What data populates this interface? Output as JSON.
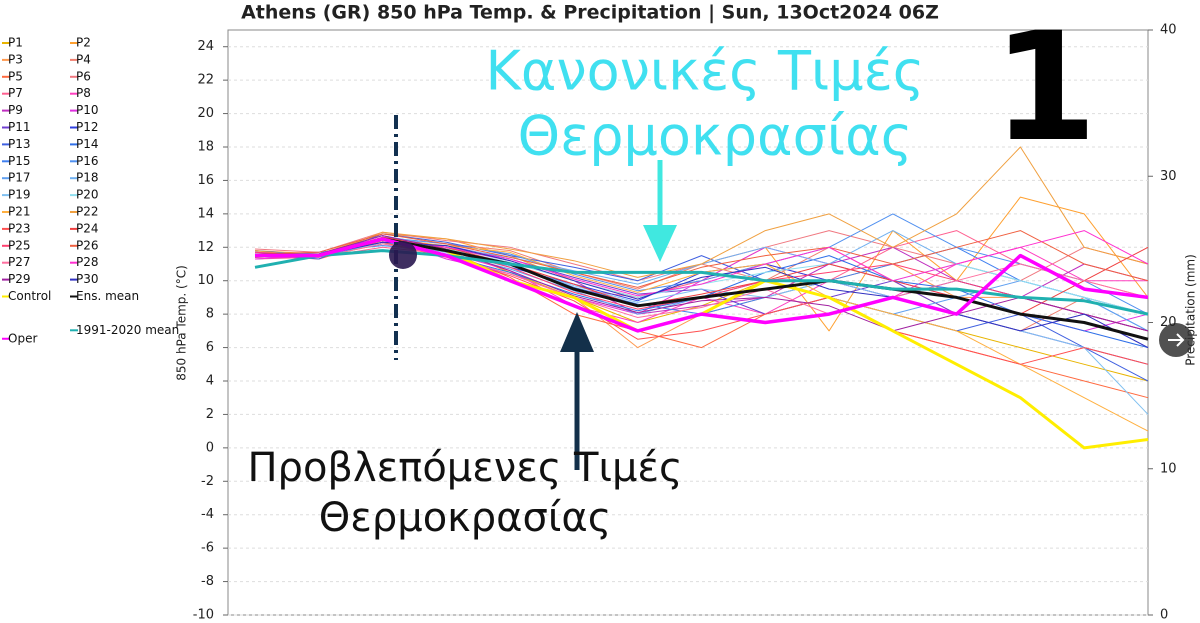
{
  "chart_data": {
    "type": "line",
    "title": "Athens  (GR)  850 hPa Temp. & Precipitation | Sun, 13Oct2024 06Z",
    "y_label": "850 hPa Temp. (°C)",
    "y2_label": "Precipitation (mm)",
    "ylim": [
      -10,
      25
    ],
    "yticks": [
      -10,
      -8,
      -6,
      -4,
      -2,
      0,
      2,
      4,
      6,
      8,
      10,
      12,
      14,
      16,
      18,
      20,
      22,
      24
    ],
    "y2lim": [
      0,
      40
    ],
    "y2ticks": [
      0,
      10,
      20,
      30,
      40
    ],
    "grid": true,
    "legend": "left",
    "annotations": [
      "Κανονικές Τιμές",
      "Θερμοκρασίας",
      "Προβλεπόμενες Τιμές",
      "Θερμοκρασίας",
      "1"
    ],
    "series": [
      {
        "name": "P1",
        "color": "#e8b400",
        "linewidth": 1,
        "values": [
          11.6,
          11.4,
          12.2,
          12,
          10.5,
          9,
          7.5,
          8.5,
          10,
          9,
          8,
          7,
          6,
          5,
          4
        ]
      },
      {
        "name": "P2",
        "color": "#ffa030",
        "linewidth": 1,
        "values": [
          11.8,
          11.6,
          12.8,
          12.5,
          11.5,
          10,
          9,
          10,
          12,
          7,
          13,
          10,
          15,
          14,
          9
        ]
      },
      {
        "name": "P3",
        "color": "#ff9a50",
        "linewidth": 1,
        "values": [
          11.4,
          11.5,
          12.3,
          11.5,
          10,
          9,
          6,
          8,
          9,
          10,
          11,
          9,
          9,
          8,
          7
        ]
      },
      {
        "name": "P4",
        "color": "#f08070",
        "linewidth": 1,
        "values": [
          11.7,
          11.6,
          12.6,
          12.2,
          11.8,
          10.5,
          9.5,
          11,
          10,
          12,
          10,
          8,
          7,
          9,
          8
        ]
      },
      {
        "name": "P5",
        "color": "#ff6a40",
        "linewidth": 1,
        "values": [
          11.5,
          11.3,
          12.4,
          11.8,
          10.2,
          8,
          7,
          6,
          8,
          9,
          7,
          6,
          5,
          4,
          3
        ]
      },
      {
        "name": "P6",
        "color": "#f07880",
        "linewidth": 1,
        "values": [
          11.9,
          11.7,
          12.9,
          12.4,
          12,
          11,
          10,
          11,
          12,
          13,
          12,
          11,
          10,
          12,
          11
        ]
      },
      {
        "name": "P7",
        "color": "#ff6090",
        "linewidth": 1,
        "values": [
          11.3,
          11.4,
          12,
          11.6,
          11,
          9.5,
          9,
          10,
          11,
          10,
          12,
          13,
          11,
          10,
          9
        ]
      },
      {
        "name": "P8",
        "color": "#ff40c0",
        "linewidth": 1,
        "values": [
          11.6,
          11.5,
          12.7,
          11.7,
          10.6,
          8.5,
          7.5,
          9,
          8,
          10,
          9,
          11,
          12,
          10,
          10
        ]
      },
      {
        "name": "P9",
        "color": "#c030c0",
        "linewidth": 1,
        "values": [
          11.5,
          11.6,
          12.5,
          12,
          11.2,
          10,
          8,
          8.5,
          9,
          11,
          12,
          10,
          9,
          11,
          10
        ]
      },
      {
        "name": "P10",
        "color": "#e030e0",
        "linewidth": 1,
        "values": [
          11.7,
          11.4,
          12.6,
          11.3,
          10.4,
          9,
          8,
          10,
          12,
          11,
          10,
          9,
          8,
          7,
          8
        ]
      },
      {
        "name": "P11",
        "color": "#7040d0",
        "linewidth": 1,
        "values": [
          11.5,
          11.5,
          12.2,
          12.1,
          11.3,
          10.2,
          9.2,
          9.5,
          8,
          9,
          10,
          8,
          7,
          6,
          5
        ]
      },
      {
        "name": "P12",
        "color": "#3040e0",
        "linewidth": 1,
        "values": [
          11.4,
          11.6,
          12.4,
          11.9,
          10.8,
          9.8,
          8.8,
          10.5,
          11,
          10,
          9,
          10,
          9,
          8,
          7
        ]
      },
      {
        "name": "P13",
        "color": "#4060e0",
        "linewidth": 1,
        "values": [
          11.6,
          11.3,
          12.8,
          12.3,
          11.5,
          10.8,
          10,
          11.5,
          10,
          9,
          8,
          7,
          8,
          6,
          4
        ]
      },
      {
        "name": "P14",
        "color": "#3070e8",
        "linewidth": 1,
        "values": [
          11.8,
          11.5,
          12.5,
          11.5,
          10.5,
          9.2,
          8.2,
          9,
          10.5,
          11.5,
          10,
          9.5,
          8,
          7,
          6
        ]
      },
      {
        "name": "P15",
        "color": "#4080f0",
        "linewidth": 1,
        "values": [
          11.5,
          11.7,
          12.1,
          11.8,
          11,
          9.6,
          8.6,
          8,
          9,
          10,
          11,
          12,
          10,
          9,
          7
        ]
      },
      {
        "name": "P16",
        "color": "#5090f0",
        "linewidth": 1,
        "values": [
          11.3,
          11.5,
          12.6,
          12.2,
          11.6,
          10.4,
          9.4,
          10,
          11,
          12,
          14,
          12,
          11,
          10,
          8
        ]
      },
      {
        "name": "P17",
        "color": "#60a0f0",
        "linewidth": 1,
        "values": [
          11.6,
          11.4,
          12.3,
          11.7,
          10.7,
          9.4,
          8,
          9,
          10,
          9,
          8,
          9,
          10,
          9,
          7
        ]
      },
      {
        "name": "P18",
        "color": "#70b0f0",
        "linewidth": 1,
        "values": [
          11.7,
          11.6,
          12.7,
          12,
          11.4,
          10.6,
          9.8,
          11,
          12,
          11,
          13,
          11,
          10,
          9,
          8
        ]
      },
      {
        "name": "P19",
        "color": "#80c0f0",
        "linewidth": 1,
        "values": [
          11.4,
          11.5,
          12.4,
          11.6,
          10.9,
          9.7,
          8.7,
          9.5,
          9,
          10,
          9,
          8,
          7,
          6,
          2
        ]
      },
      {
        "name": "P20",
        "color": "#90e0f0",
        "linewidth": 1,
        "values": [
          11.5,
          11.6,
          12.2,
          11.9,
          11.1,
          10,
          9,
          9.8,
          10.5,
          11,
          10,
          11,
          10,
          9,
          8
        ]
      },
      {
        "name": "P21",
        "color": "#ffb040",
        "linewidth": 1,
        "values": [
          11.6,
          11.5,
          12.5,
          12.1,
          11.7,
          10.3,
          9.3,
          10.5,
          11,
          9,
          8,
          7,
          5,
          3,
          1
        ]
      },
      {
        "name": "P22",
        "color": "#f0a040",
        "linewidth": 1,
        "values": [
          11.8,
          11.4,
          12.9,
          12.5,
          11.9,
          11.2,
          10.2,
          11,
          13,
          14,
          12,
          14,
          18,
          12,
          11
        ]
      },
      {
        "name": "P23",
        "color": "#ff5050",
        "linewidth": 1,
        "values": [
          11.5,
          11.6,
          12.3,
          11.4,
          10.3,
          8.8,
          6.5,
          7,
          8,
          9,
          7,
          6,
          5,
          6,
          5
        ]
      },
      {
        "name": "P24",
        "color": "#f04040",
        "linewidth": 1,
        "values": [
          11.4,
          11.5,
          12.6,
          12,
          11,
          9.8,
          8.5,
          9.2,
          10,
          11,
          10,
          9,
          8,
          10,
          12
        ]
      },
      {
        "name": "P25",
        "color": "#ff4070",
        "linewidth": 1,
        "values": [
          11.7,
          11.5,
          12.4,
          11.8,
          10.8,
          9.3,
          8.3,
          9,
          10,
          10.5,
          11,
          10,
          9,
          8,
          7
        ]
      },
      {
        "name": "P26",
        "color": "#f06040",
        "linewidth": 1,
        "values": [
          11.6,
          11.7,
          12.8,
          12.2,
          11.4,
          10.5,
          9.6,
          10.8,
          11.5,
          12,
          11,
          12,
          13,
          11,
          10
        ]
      },
      {
        "name": "P27",
        "color": "#ff70a0",
        "linewidth": 1,
        "values": [
          11.5,
          11.4,
          12.2,
          11.5,
          10.4,
          9,
          7.8,
          8.4,
          9.5,
          8,
          9,
          10,
          11,
          10,
          9
        ]
      },
      {
        "name": "P28",
        "color": "#ff30d0",
        "linewidth": 1,
        "values": [
          11.3,
          11.5,
          12.5,
          12,
          11.3,
          10.1,
          9.1,
          9.8,
          11,
          12,
          10,
          11,
          12,
          13,
          11
        ]
      },
      {
        "name": "P29",
        "color": "#a020a0",
        "linewidth": 1,
        "values": [
          11.6,
          11.6,
          12.7,
          11.9,
          10.6,
          9.1,
          8.1,
          8.8,
          9,
          8.5,
          7,
          8,
          9,
          8,
          7
        ]
      },
      {
        "name": "P30",
        "color": "#3030c0",
        "linewidth": 1,
        "values": [
          11.5,
          11.5,
          12.3,
          12.1,
          11.2,
          10,
          8.9,
          10.2,
          10.8,
          9.5,
          9,
          8,
          7,
          8,
          6
        ]
      },
      {
        "name": "Control",
        "color": "#ffee00",
        "linewidth": 3,
        "values": [
          11.5,
          11.5,
          12.5,
          11.8,
          10,
          9,
          7,
          8,
          10,
          9,
          7,
          5,
          3,
          0,
          0.5
        ]
      },
      {
        "name": "Ens. mean",
        "color": "#111111",
        "linewidth": 3,
        "values": [
          11.5,
          11.5,
          12.5,
          11.8,
          11,
          9.5,
          8.5,
          9,
          9.5,
          10,
          9.5,
          9,
          8,
          7.5,
          6.5
        ]
      },
      {
        "name": "Oper",
        "color": "#ff00ff",
        "linewidth": 3.5,
        "values": [
          11.5,
          11.5,
          12.5,
          11.5,
          10,
          8.5,
          7,
          8,
          7.5,
          8,
          9,
          8,
          11.5,
          9.5,
          9
        ]
      },
      {
        "name": "1991-2020 mean",
        "color": "#20b0b0",
        "linewidth": 3,
        "values": [
          10.8,
          11.5,
          11.8,
          11.5,
          11,
          10.5,
          10.5,
          10.5,
          10,
          10,
          9.5,
          9.5,
          9,
          8.8,
          8
        ]
      }
    ]
  }
}
